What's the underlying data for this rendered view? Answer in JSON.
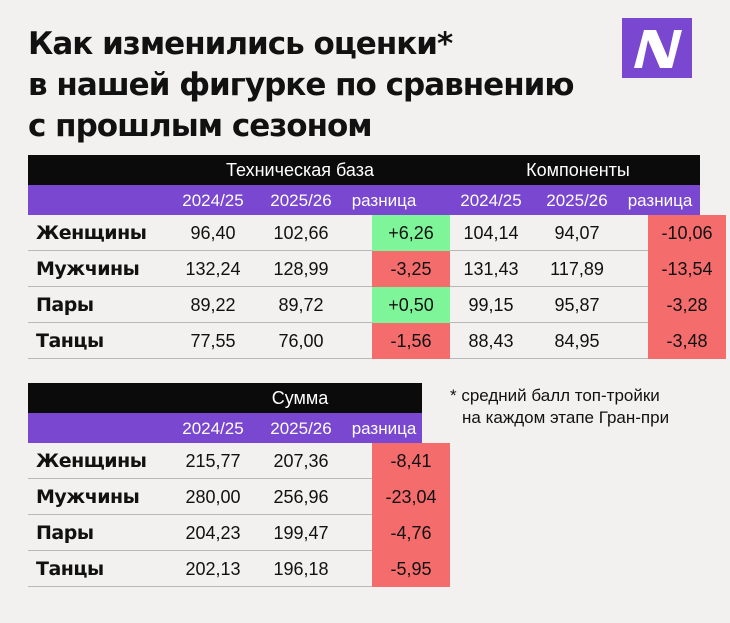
{
  "title_lines": [
    "Как изменились оценки*",
    "в нашей фигурке по сравнению",
    "с прошлым сезоном"
  ],
  "logo": {
    "icon": "logo-icon",
    "color": "#7a47d0"
  },
  "colors": {
    "header": "#0b0b0b",
    "subheader": "#7a47d0",
    "positive": "#7ff59a",
    "negative": "#f56c6c"
  },
  "note_lines": [
    "* средний балл топ-тройки",
    "на каждом этапе Гран-при"
  ],
  "chart_data": [
    {
      "type": "table",
      "groups": [
        {
          "name": "Техническая база",
          "columns": [
            "2024/25",
            "2025/26",
            "разница"
          ],
          "rows": [
            {
              "label": "Женщины",
              "values": [
                "96,40",
                "102,66",
                "+6,26"
              ],
              "sign": "pos"
            },
            {
              "label": "Мужчины",
              "values": [
                "132,24",
                "128,99",
                "-3,25"
              ],
              "sign": "neg"
            },
            {
              "label": "Пары",
              "values": [
                "89,22",
                "89,72",
                "+0,50"
              ],
              "sign": "pos"
            },
            {
              "label": "Танцы",
              "values": [
                "77,55",
                "76,00",
                "-1,56"
              ],
              "sign": "neg"
            }
          ]
        },
        {
          "name": "Компоненты",
          "columns": [
            "2024/25",
            "2025/26",
            "разница"
          ],
          "rows": [
            {
              "label": "Женщины",
              "values": [
                "104,14",
                "94,07",
                "-10,06"
              ],
              "sign": "neg"
            },
            {
              "label": "Мужчины",
              "values": [
                "131,43",
                "117,89",
                "-13,54"
              ],
              "sign": "neg"
            },
            {
              "label": "Пары",
              "values": [
                "99,15",
                "95,87",
                "-3,28"
              ],
              "sign": "neg"
            },
            {
              "label": "Танцы",
              "values": [
                "88,43",
                "84,95",
                "-3,48"
              ],
              "sign": "neg"
            }
          ]
        }
      ]
    },
    {
      "type": "table",
      "groups": [
        {
          "name": "Сумма",
          "columns": [
            "2024/25",
            "2025/26",
            "разница"
          ],
          "rows": [
            {
              "label": "Женщины",
              "values": [
                "215,77",
                "207,36",
                "-8,41"
              ],
              "sign": "neg"
            },
            {
              "label": "Мужчины",
              "values": [
                "280,00",
                "256,96",
                "-23,04"
              ],
              "sign": "neg"
            },
            {
              "label": "Пары",
              "values": [
                "204,23",
                "199,47",
                "-4,76"
              ],
              "sign": "neg"
            },
            {
              "label": "Танцы",
              "values": [
                "202,13",
                "196,18",
                "-5,95"
              ],
              "sign": "neg"
            }
          ]
        }
      ]
    }
  ]
}
